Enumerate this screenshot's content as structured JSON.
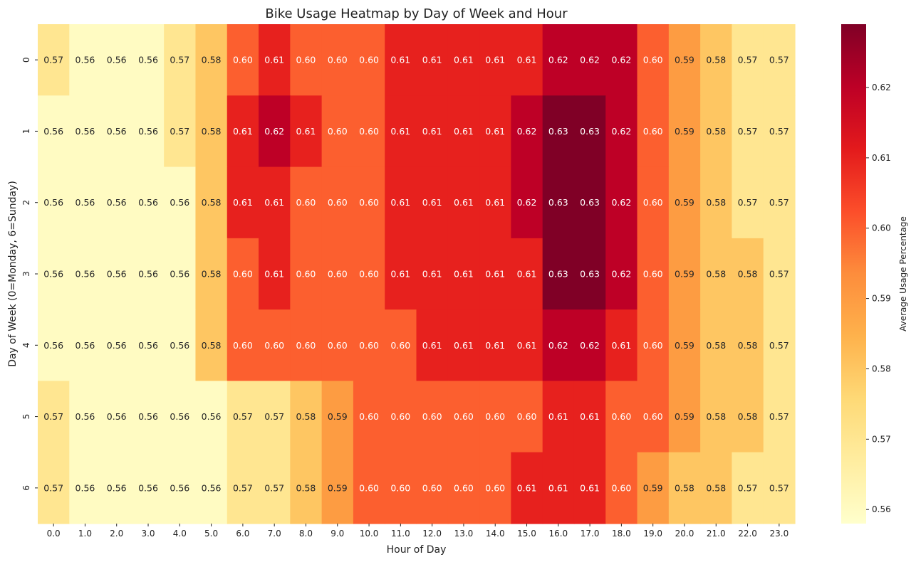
{
  "chart_data": {
    "type": "heatmap",
    "title": "Bike Usage Heatmap by Day of Week and Hour",
    "xlabel": "Hour of Day",
    "ylabel": "Day of Week (0=Monday, 6=Sunday)",
    "x_categories": [
      "0.0",
      "1.0",
      "2.0",
      "3.0",
      "4.0",
      "5.0",
      "6.0",
      "7.0",
      "8.0",
      "9.0",
      "10.0",
      "11.0",
      "12.0",
      "13.0",
      "14.0",
      "15.0",
      "16.0",
      "17.0",
      "18.0",
      "19.0",
      "20.0",
      "21.0",
      "22.0",
      "23.0"
    ],
    "y_categories": [
      "0",
      "1",
      "2",
      "3",
      "4",
      "5",
      "6"
    ],
    "values": [
      [
        0.57,
        0.56,
        0.56,
        0.56,
        0.57,
        0.58,
        0.6,
        0.61,
        0.6,
        0.6,
        0.6,
        0.61,
        0.61,
        0.61,
        0.61,
        0.61,
        0.62,
        0.62,
        0.62,
        0.6,
        0.59,
        0.58,
        0.57,
        0.57
      ],
      [
        0.56,
        0.56,
        0.56,
        0.56,
        0.57,
        0.58,
        0.61,
        0.62,
        0.61,
        0.6,
        0.6,
        0.61,
        0.61,
        0.61,
        0.61,
        0.62,
        0.63,
        0.63,
        0.62,
        0.6,
        0.59,
        0.58,
        0.57,
        0.57
      ],
      [
        0.56,
        0.56,
        0.56,
        0.56,
        0.56,
        0.58,
        0.61,
        0.61,
        0.6,
        0.6,
        0.6,
        0.61,
        0.61,
        0.61,
        0.61,
        0.62,
        0.63,
        0.63,
        0.62,
        0.6,
        0.59,
        0.58,
        0.57,
        0.57
      ],
      [
        0.56,
        0.56,
        0.56,
        0.56,
        0.56,
        0.58,
        0.6,
        0.61,
        0.6,
        0.6,
        0.6,
        0.61,
        0.61,
        0.61,
        0.61,
        0.61,
        0.63,
        0.63,
        0.62,
        0.6,
        0.59,
        0.58,
        0.58,
        0.57
      ],
      [
        0.56,
        0.56,
        0.56,
        0.56,
        0.56,
        0.58,
        0.6,
        0.6,
        0.6,
        0.6,
        0.6,
        0.6,
        0.61,
        0.61,
        0.61,
        0.61,
        0.62,
        0.62,
        0.61,
        0.6,
        0.59,
        0.58,
        0.58,
        0.57
      ],
      [
        0.57,
        0.56,
        0.56,
        0.56,
        0.56,
        0.56,
        0.57,
        0.57,
        0.58,
        0.59,
        0.6,
        0.6,
        0.6,
        0.6,
        0.6,
        0.6,
        0.61,
        0.61,
        0.6,
        0.6,
        0.59,
        0.58,
        0.58,
        0.57
      ],
      [
        0.57,
        0.56,
        0.56,
        0.56,
        0.56,
        0.56,
        0.57,
        0.57,
        0.58,
        0.59,
        0.6,
        0.6,
        0.6,
        0.6,
        0.6,
        0.61,
        0.61,
        0.61,
        0.6,
        0.59,
        0.58,
        0.58,
        0.57,
        0.57
      ]
    ],
    "colorbar": {
      "label": "Average Usage Percentage",
      "min": 0.558,
      "max": 0.629,
      "ticks": [
        0.56,
        0.57,
        0.58,
        0.59,
        0.6,
        0.61,
        0.62
      ],
      "tick_labels": [
        "0.56",
        "0.57",
        "0.58",
        "0.59",
        "0.60",
        "0.61",
        "0.62"
      ],
      "colormap": "YlOrRd",
      "colormap_stops": [
        "#ffffcc",
        "#ffeda0",
        "#fed976",
        "#feb24c",
        "#fd8d3c",
        "#fc4e2a",
        "#e31a1c",
        "#bd0026",
        "#800026"
      ]
    },
    "annotated": true
  }
}
